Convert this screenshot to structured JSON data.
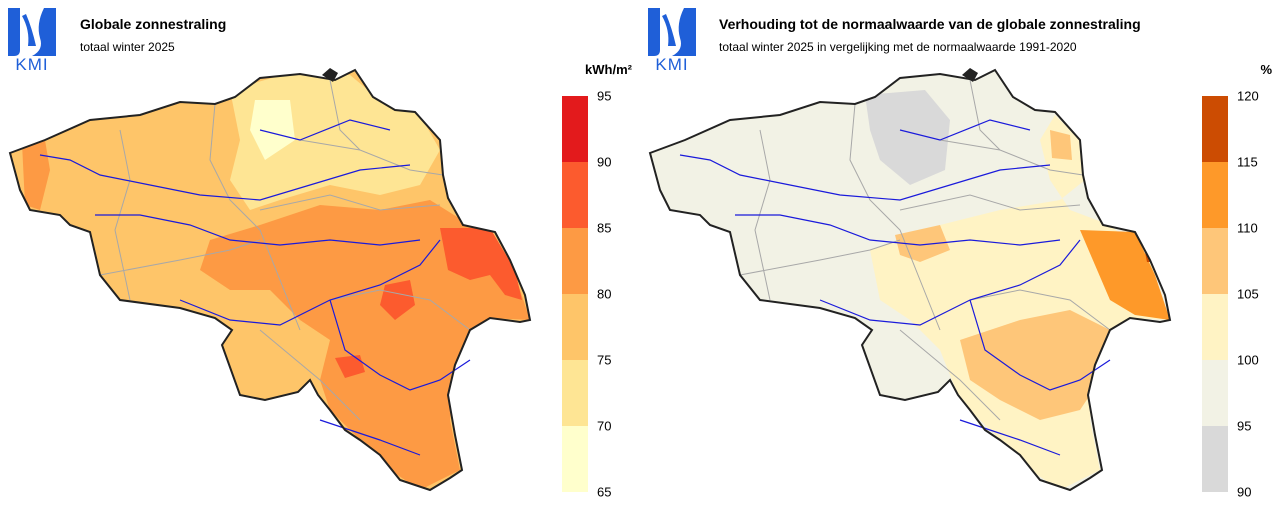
{
  "logo": {
    "text": "KMI",
    "icon": "kmi-logo-icon"
  },
  "panels": [
    {
      "title": "Globale zonnestraling",
      "subtitle": "totaal winter 2025",
      "unit": "kWh/m²",
      "legend_ticks": [
        "95",
        "90",
        "85",
        "80",
        "75",
        "70",
        "65"
      ],
      "legend_colors": [
        "#e31a1c",
        "#fc5b2e",
        "#fd9a44",
        "#fec569",
        "#fee594",
        "#ffffcc"
      ]
    },
    {
      "title": "Verhouding tot de normaalwaarde van de globale zonnestraling",
      "subtitle": "totaal winter 2025 in vergelijking met de normaalwaarde 1991-2020",
      "unit": "%",
      "legend_ticks": [
        "120",
        "115",
        "110",
        "105",
        "100",
        "95",
        "90"
      ],
      "legend_colors": [
        "#cc4c02",
        "#fe9929",
        "#fec679",
        "#fff3c4",
        "#f2f2e5",
        "#d9d9d9"
      ]
    }
  ]
}
